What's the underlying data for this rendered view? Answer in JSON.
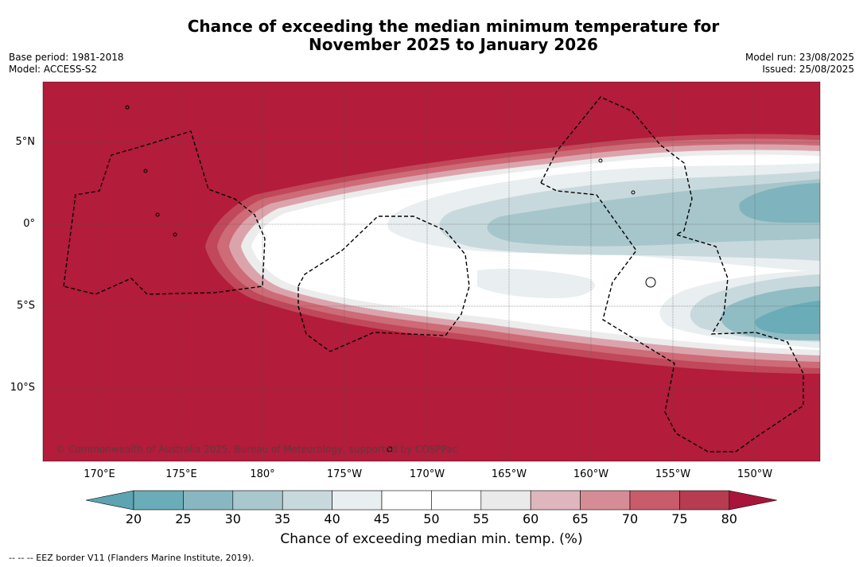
{
  "title": {
    "line1": "Chance of exceeding the median minimum temperature for",
    "line2": "November 2025 to January 2026"
  },
  "meta_left": {
    "base_period": "Base period: 1981-2018",
    "model": "Model: ACCESS-S2"
  },
  "meta_right": {
    "model_run": "Model run: 23/08/2025",
    "issued": "Issued: 25/08/2025"
  },
  "copyright": "© Commonwealth of Australia 2025, Bureau of Meteorology, supported by COSPPac",
  "axes": {
    "lon_ticks": [
      "170°E",
      "175°E",
      "180°",
      "175°W",
      "170°W",
      "165°W",
      "160°W",
      "155°W",
      "150°W"
    ],
    "lat_ticks": [
      "5°N",
      "0°",
      "5°S",
      "10°S"
    ]
  },
  "colorbar": {
    "label": "Chance of exceeding median min. temp. (%)",
    "ticks": [
      "20",
      "25",
      "30",
      "35",
      "40",
      "45",
      "50",
      "55",
      "60",
      "65",
      "70",
      "75",
      "80"
    ],
    "colors": [
      "#5ea3b1",
      "#6aacb8",
      "#88b7c2",
      "#a9c8cd",
      "#c8d9dd",
      "#e9eef1",
      "#ffffff",
      "#ffffff",
      "#eaeaea",
      "#dfb6bd",
      "#d68c95",
      "#c85c6b",
      "#b83c50",
      "#a9153a"
    ]
  },
  "footnote": "--  --  -- EEZ border V11 (Flanders Marine Institute, 2019)."
}
